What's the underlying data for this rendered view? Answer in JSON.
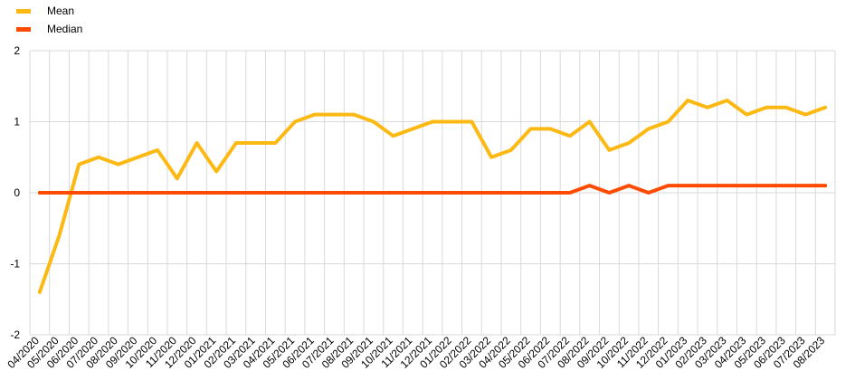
{
  "chart_data": {
    "type": "line",
    "title": "",
    "xlabel": "",
    "ylabel": "",
    "ylim": [
      -2,
      2
    ],
    "yticks": [
      -2,
      -1,
      0,
      1,
      2
    ],
    "grid": true,
    "legend_position": "top-left",
    "x": [
      "04/2020",
      "05/2020",
      "06/2020",
      "07/2020",
      "08/2020",
      "09/2020",
      "10/2020",
      "11/2020",
      "12/2020",
      "01/2021",
      "02/2021",
      "03/2021",
      "04/2021",
      "05/2021",
      "06/2021",
      "07/2021",
      "08/2021",
      "09/2021",
      "10/2021",
      "11/2021",
      "12/2021",
      "01/2022",
      "02/2022",
      "03/2022",
      "04/2022",
      "05/2022",
      "06/2022",
      "07/2022",
      "08/2022",
      "09/2022",
      "10/2022",
      "11/2022",
      "12/2022",
      "01/2023",
      "02/2023",
      "03/2023",
      "04/2023",
      "05/2023",
      "06/2023",
      "07/2023",
      "08/2023"
    ],
    "series": [
      {
        "name": "Mean",
        "color": "#FDB913",
        "values": [
          -1.4,
          -0.6,
          0.4,
          0.5,
          0.4,
          0.5,
          0.6,
          0.2,
          0.7,
          0.3,
          0.7,
          0.7,
          0.7,
          1.0,
          1.1,
          1.1,
          1.1,
          1.0,
          0.8,
          0.9,
          1.0,
          1.0,
          1.0,
          0.5,
          0.6,
          0.9,
          0.9,
          0.8,
          1.0,
          0.6,
          0.7,
          0.9,
          1.0,
          1.3,
          1.2,
          1.3,
          1.1,
          1.2,
          1.2,
          1.1,
          1.2
        ]
      },
      {
        "name": "Median",
        "color": "#FF4B00",
        "values": [
          0,
          0,
          0,
          0,
          0,
          0,
          0,
          0,
          0,
          0,
          0,
          0,
          0,
          0,
          0,
          0,
          0,
          0,
          0,
          0,
          0,
          0,
          0,
          0,
          0,
          0,
          0,
          0,
          0.1,
          0,
          0.1,
          0,
          0.1,
          0.1,
          0.1,
          0.1,
          0.1,
          0.1,
          0.1,
          0.1,
          0.1
        ]
      }
    ]
  }
}
